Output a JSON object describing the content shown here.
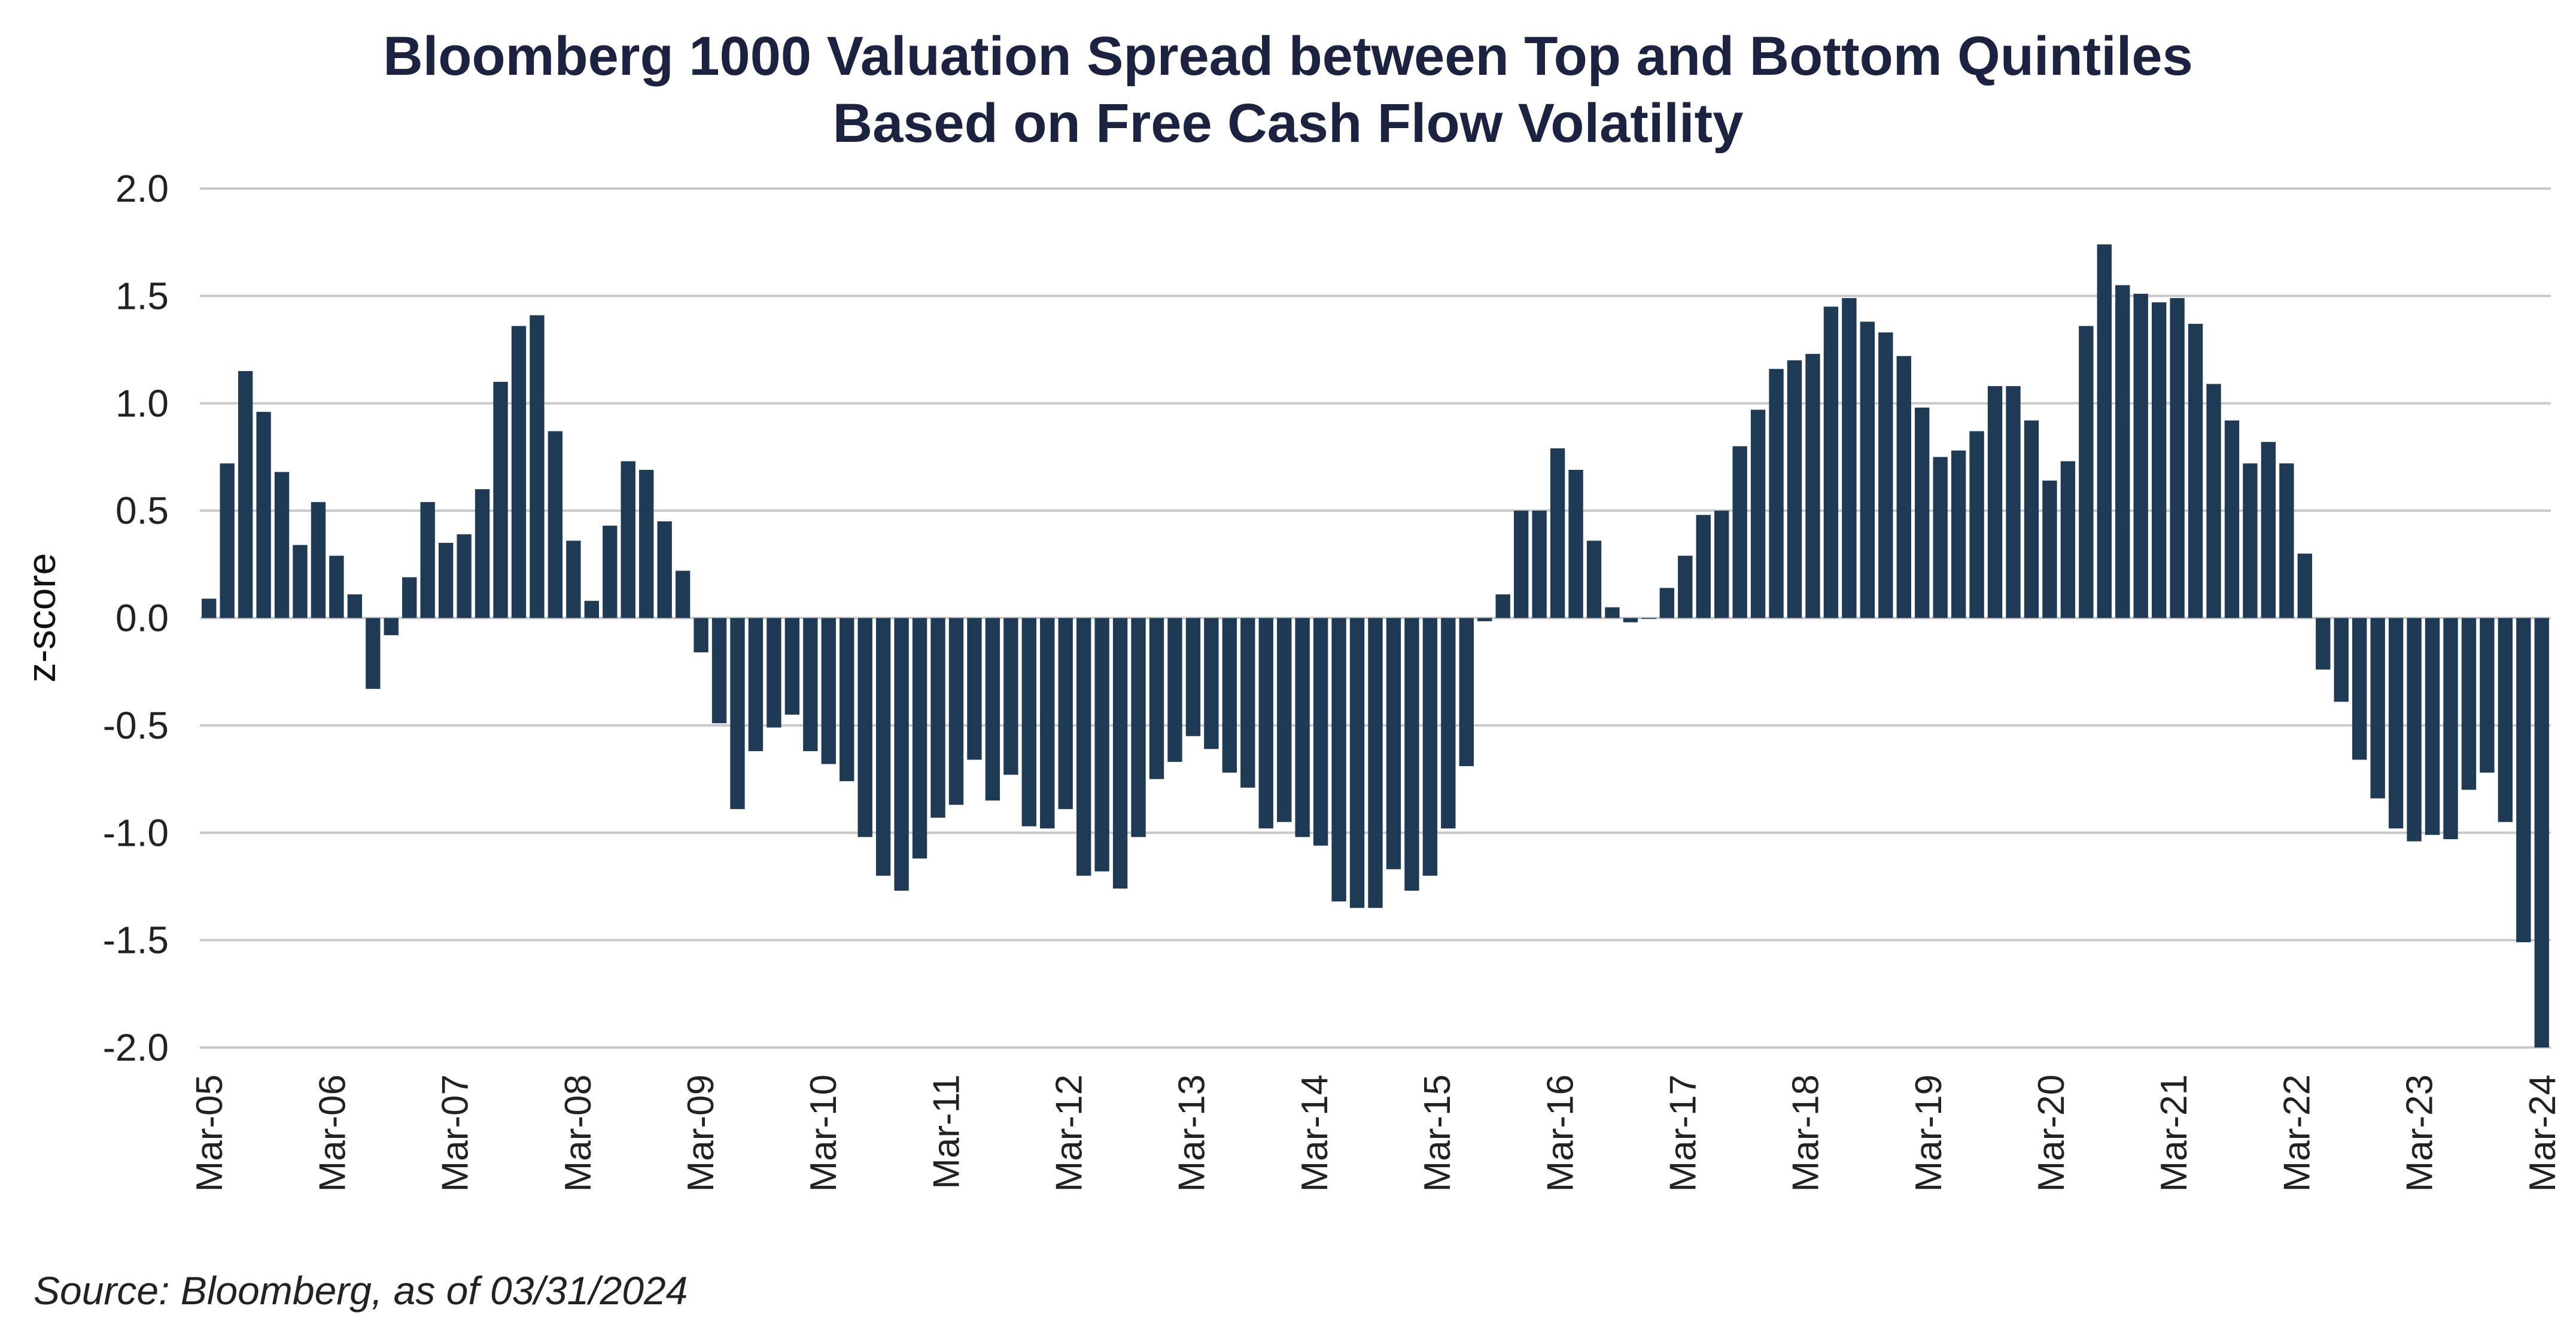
{
  "chart_data": {
    "type": "bar",
    "title": [
      "Bloomberg 1000 Valuation Spread between Top and Bottom Quintiles",
      "Based on Free Cash Flow Volatility"
    ],
    "xlabel": "",
    "ylabel": "z-score",
    "ylim": [
      -2.0,
      2.0
    ],
    "yticks": [
      2.0,
      1.5,
      1.0,
      0.5,
      0.0,
      -0.5,
      -1.0,
      -1.5,
      -2.0
    ],
    "ytick_labels": [
      "2.0",
      "1.5",
      "1.0",
      "0.5",
      "0.0",
      "-0.5",
      "-1.0",
      "-1.5",
      "-2.0"
    ],
    "xtick_labels": [
      "Mar-05",
      "Mar-06",
      "Mar-07",
      "Mar-08",
      "Mar-09",
      "Mar-10",
      "Mar-11",
      "Mar-12",
      "Mar-13",
      "Mar-14",
      "Mar-15",
      "Mar-16",
      "Mar-17",
      "Mar-18",
      "Mar-19",
      "Mar-20",
      "Mar-21",
      "Mar-22",
      "Mar-23",
      "Mar-24"
    ],
    "grid": true,
    "legend": "none",
    "bar_color": "#1e3a54",
    "values": [
      0.09,
      0.72,
      1.15,
      0.96,
      0.68,
      0.34,
      0.54,
      0.29,
      0.11,
      -0.33,
      -0.08,
      0.19,
      0.54,
      0.35,
      0.39,
      0.6,
      1.1,
      1.36,
      1.41,
      0.87,
      0.36,
      0.08,
      0.43,
      0.73,
      0.69,
      0.45,
      0.22,
      -0.16,
      -0.49,
      -0.89,
      -0.62,
      -0.51,
      -0.45,
      -0.62,
      -0.68,
      -0.76,
      -1.02,
      -1.2,
      -1.27,
      -1.12,
      -0.93,
      -0.87,
      -0.66,
      -0.85,
      -0.73,
      -0.97,
      -0.98,
      -0.89,
      -1.2,
      -1.18,
      -1.26,
      -1.02,
      -0.75,
      -0.67,
      -0.55,
      -0.61,
      -0.72,
      -0.79,
      -0.98,
      -0.95,
      -1.02,
      -1.06,
      -1.32,
      -1.35,
      -1.35,
      -1.17,
      -1.27,
      -1.2,
      -0.98,
      -0.69,
      -0.015,
      0.11,
      0.5,
      0.5,
      0.79,
      0.69,
      0.36,
      0.05,
      -0.02,
      0.0,
      0.14,
      0.29,
      0.48,
      0.5,
      0.8,
      0.97,
      1.16,
      1.2,
      1.23,
      1.45,
      1.49,
      1.38,
      1.33,
      1.22,
      0.98,
      0.75,
      0.78,
      0.87,
      1.08,
      1.08,
      0.92,
      0.64,
      0.73,
      1.36,
      1.74,
      1.55,
      1.51,
      1.47,
      1.49,
      1.37,
      1.09,
      0.92,
      0.72,
      0.82,
      0.72,
      0.3,
      -0.24,
      -0.39,
      -0.66,
      -0.84,
      -0.98,
      -1.04,
      -1.01,
      -1.03,
      -0.8,
      -0.72,
      -0.95,
      -1.51,
      -2.0
    ]
  },
  "source": "Source: Bloomberg, as of 03/31/2024"
}
